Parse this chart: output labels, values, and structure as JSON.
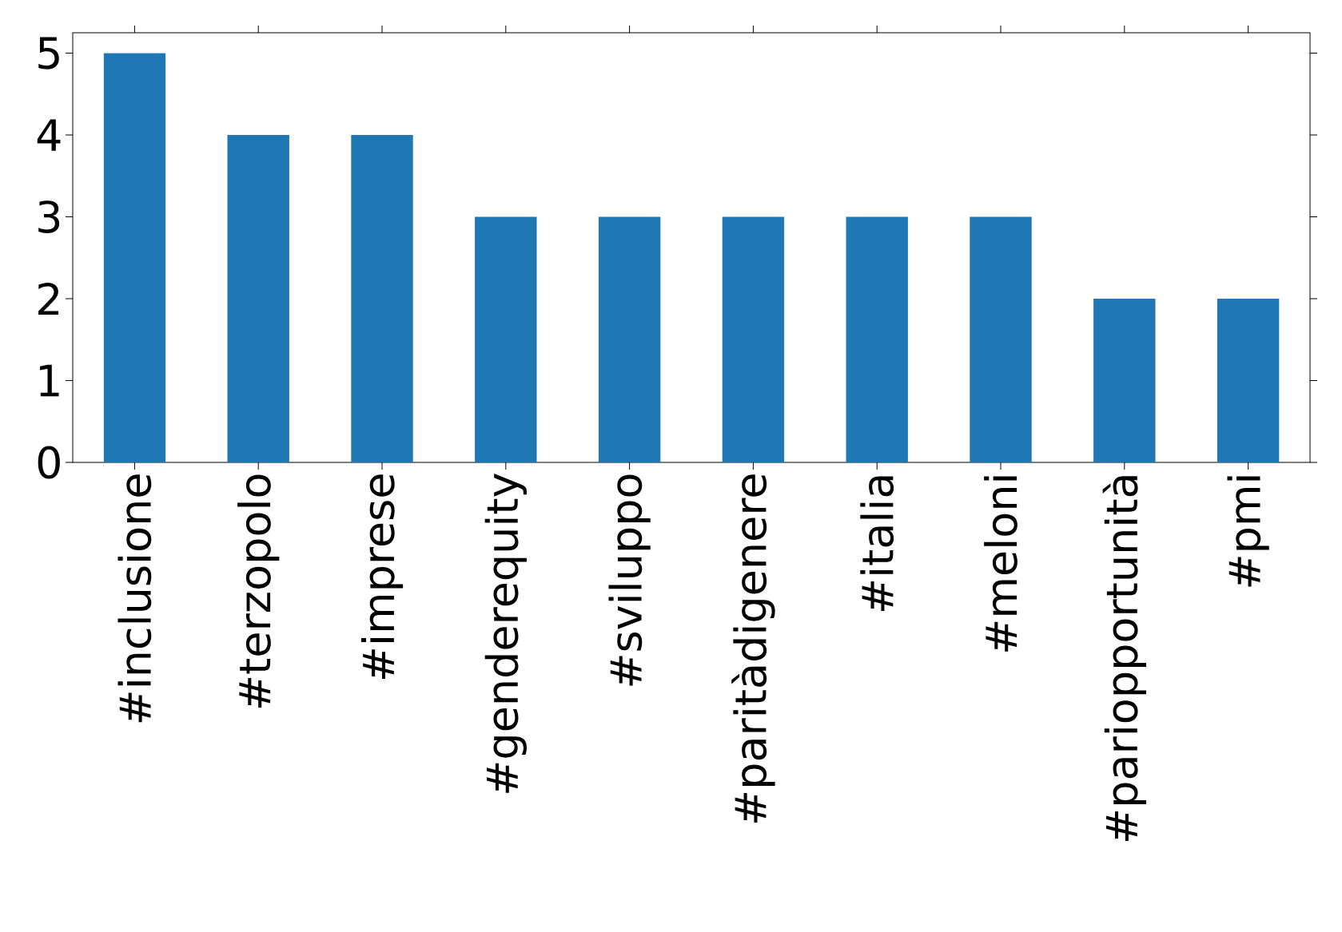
{
  "chart_data": {
    "type": "bar",
    "categories": [
      "#inclusione",
      "#terzopolo",
      "#imprese",
      "#genderequity",
      "#sviluppo",
      "#paritàdigenere",
      "#italia",
      "#meloni",
      "#pariopportunità",
      "#pmi"
    ],
    "values": [
      5,
      4,
      4,
      3,
      3,
      3,
      3,
      3,
      2,
      2
    ],
    "color": "#1f77b4",
    "ylim": [
      0,
      5.25
    ],
    "yticks": [
      0,
      1,
      2,
      3,
      4,
      5
    ]
  }
}
